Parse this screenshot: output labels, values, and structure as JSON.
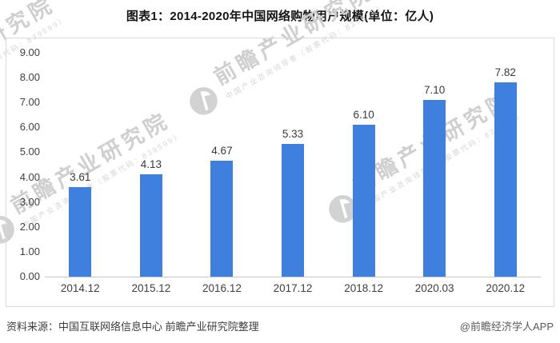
{
  "title": "图表1：2014-2020年中国网络购物用户规模(单位：亿人)",
  "chart_data": {
    "type": "bar",
    "title": "图表1：2014-2020年中国网络购物用户规模(单位：亿人)",
    "unit": "亿人",
    "categories": [
      "2014.12",
      "2015.12",
      "2016.12",
      "2017.12",
      "2018.12",
      "2020.03",
      "2020.12"
    ],
    "values": [
      3.61,
      4.13,
      4.67,
      5.33,
      6.1,
      7.1,
      7.82
    ],
    "data_labels": [
      "3.61",
      "4.13",
      "4.67",
      "5.33",
      "6.10",
      "7.10",
      "7.82"
    ],
    "ylim": [
      0,
      9
    ],
    "ytick_step": 1,
    "ytick_labels": [
      "0.00",
      "1.00",
      "2.00",
      "3.00",
      "4.00",
      "5.00",
      "6.00",
      "7.00",
      "8.00",
      "9.00"
    ],
    "grid": false,
    "legend": "none",
    "colors": {
      "bar": "#3F7FDE",
      "axis_line": "#c6c6c6",
      "frame_border": "#d9d9d9",
      "label_text": "#3a3a3a"
    }
  },
  "watermark": {
    "big_text": "前瞻产业研究院",
    "small_text": "中国产业咨询领导者（股票代码：839599）"
  },
  "footer": {
    "source": "资料来源：中国互联网络信息中心 前瞻产业研究院整理",
    "credit": "@前瞻经济学人APP"
  }
}
